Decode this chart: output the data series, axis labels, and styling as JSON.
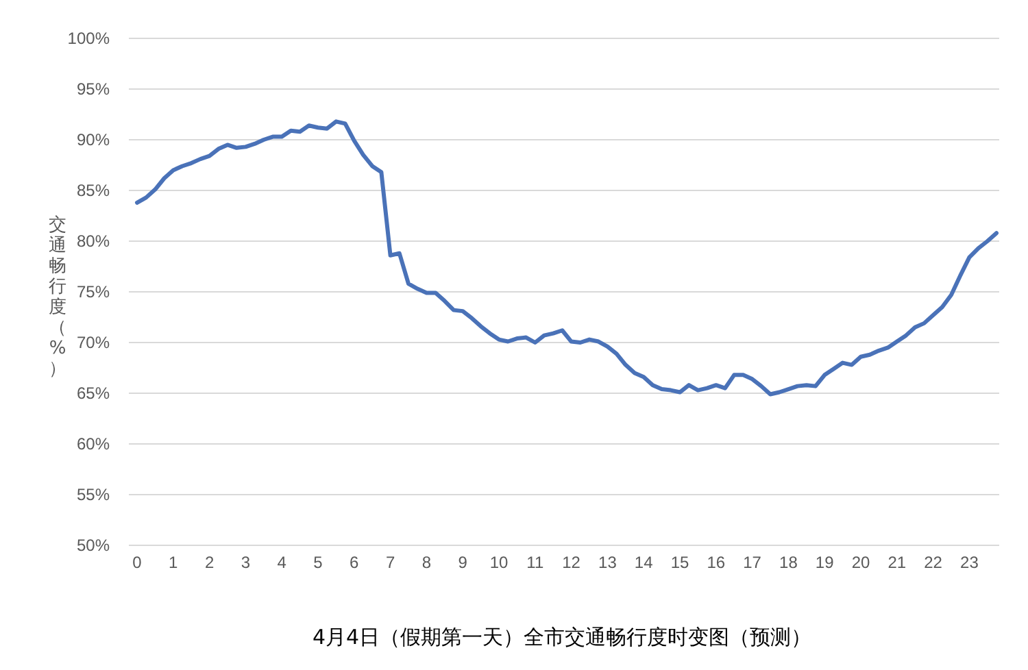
{
  "chart_data": {
    "type": "line",
    "title": "4月4日（假期第一天）全市交通畅行度时变图（预测）",
    "ylabel": "交通畅行度（%）",
    "x": [
      0,
      0.25,
      0.5,
      0.75,
      1,
      1.25,
      1.5,
      1.75,
      2,
      2.25,
      2.5,
      2.75,
      3,
      3.25,
      3.5,
      3.75,
      4,
      4.25,
      4.5,
      4.75,
      5,
      5.25,
      5.5,
      5.75,
      6,
      6.25,
      6.5,
      6.75,
      7,
      7.25,
      7.5,
      7.75,
      8,
      8.25,
      8.5,
      8.75,
      9,
      9.25,
      9.5,
      9.75,
      10,
      10.25,
      10.5,
      10.75,
      11,
      11.25,
      11.5,
      11.75,
      12,
      12.25,
      12.5,
      12.75,
      13,
      13.25,
      13.5,
      13.75,
      14,
      14.25,
      14.5,
      14.75,
      15,
      15.25,
      15.5,
      15.75,
      16,
      16.25,
      16.5,
      16.75,
      17,
      17.25,
      17.5,
      17.75,
      18,
      18.25,
      18.5,
      18.75,
      19,
      19.25,
      19.5,
      19.75,
      20,
      20.25,
      20.5,
      20.75,
      21,
      21.25,
      21.5,
      21.75,
      22,
      22.25,
      22.5,
      22.75,
      23,
      23.25,
      23.5,
      23.75
    ],
    "series": [
      {
        "color": "#4a72b8",
        "values": [
          83.8,
          84.3,
          85.1,
          86.2,
          87.0,
          87.4,
          87.7,
          88.1,
          88.4,
          89.1,
          89.5,
          89.2,
          89.3,
          89.6,
          90.0,
          90.3,
          90.3,
          90.9,
          90.8,
          91.4,
          91.2,
          91.1,
          91.8,
          91.6,
          89.9,
          88.5,
          87.4,
          86.8,
          78.6,
          78.8,
          75.8,
          75.3,
          74.9,
          74.9,
          74.1,
          73.2,
          73.1,
          72.4,
          71.6,
          70.9,
          70.3,
          70.1,
          70.4,
          70.5,
          70.0,
          70.7,
          70.9,
          71.2,
          70.1,
          70.0,
          70.3,
          70.1,
          69.6,
          68.9,
          67.8,
          67.0,
          66.6,
          65.8,
          65.4,
          65.3,
          65.1,
          65.8,
          65.3,
          65.5,
          65.8,
          65.5,
          66.8,
          66.8,
          66.4,
          65.7,
          64.9,
          65.1,
          65.4,
          65.7,
          65.8,
          65.7,
          66.8,
          67.4,
          68.0,
          67.8,
          68.6,
          68.8,
          69.2,
          69.5,
          70.1,
          70.7,
          71.5,
          71.9,
          72.7,
          73.5,
          74.7,
          76.6,
          78.4,
          79.3,
          80.0,
          80.8
        ]
      }
    ],
    "xlim": [
      0,
      23.75
    ],
    "xticks": [
      0,
      1,
      2,
      3,
      4,
      5,
      6,
      7,
      8,
      9,
      10,
      11,
      12,
      13,
      14,
      15,
      16,
      17,
      18,
      19,
      20,
      21,
      22,
      23
    ],
    "ylim": [
      50,
      100
    ],
    "yticks": [
      {
        "value": 50,
        "label": "50%"
      },
      {
        "value": 55,
        "label": "55%"
      },
      {
        "value": 60,
        "label": "60%"
      },
      {
        "value": 65,
        "label": "65%"
      },
      {
        "value": 70,
        "label": "70%"
      },
      {
        "value": 75,
        "label": "75%"
      },
      {
        "value": 80,
        "label": "80%"
      },
      {
        "value": 85,
        "label": "85%"
      },
      {
        "value": 90,
        "label": "90%"
      },
      {
        "value": 95,
        "label": "95%"
      },
      {
        "value": 100,
        "label": "100%"
      }
    ],
    "grid": "y",
    "marker": "none",
    "line_style": "solid"
  }
}
